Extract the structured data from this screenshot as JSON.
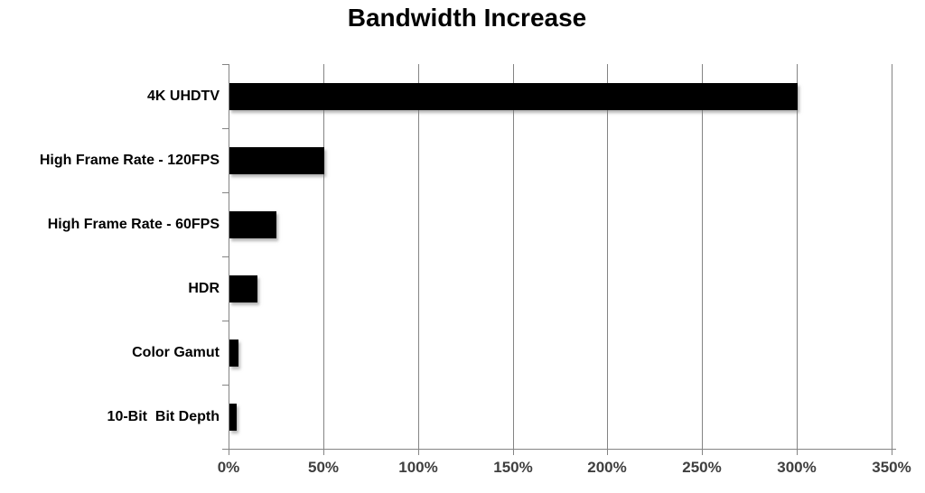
{
  "chart_data": {
    "type": "bar",
    "orientation": "horizontal",
    "title": "Bandwidth Increase",
    "categories": [
      "4K UHDTV",
      "High Frame Rate - 120FPS",
      "High Frame Rate - 60FPS",
      "HDR",
      "Color Gamut",
      "10-Bit  Bit Depth"
    ],
    "values": [
      300,
      50,
      25,
      15,
      5,
      4
    ],
    "value_unit": "%",
    "xlabel": "",
    "ylabel": "",
    "xlim": [
      0,
      350
    ],
    "x_tick_step": 50,
    "x_tick_labels": [
      "0%",
      "50%",
      "100%",
      "150%",
      "200%",
      "250%",
      "300%",
      "350%"
    ],
    "grid": true,
    "legend": false,
    "bar_color": "#000000",
    "gridline_color": "#848484",
    "axis_color": "#848484",
    "tick_label_color": "#3f3f3f",
    "title_color": "#000000",
    "background_color": "#ffffff"
  }
}
